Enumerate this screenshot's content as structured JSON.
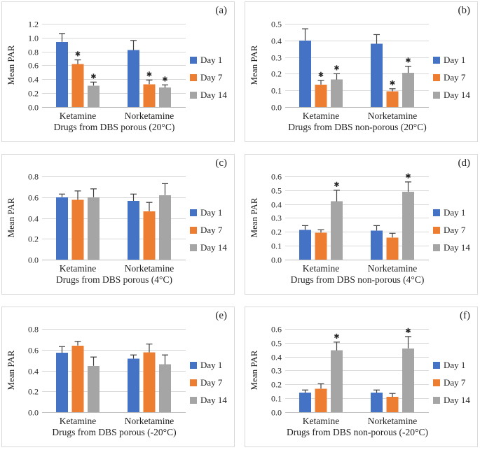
{
  "figure": {
    "legend": [
      "Day 1",
      "Day 7",
      "Day 14"
    ],
    "legend_position": "right",
    "sig_marker": "✱",
    "colors": {
      "day1": "#4472C4",
      "day7": "#ED7D31",
      "day14": "#A5A5A5",
      "error_bar": "#404040",
      "gridline": "#d9d9d9",
      "axis_line": "#bfbfbf",
      "panel_border": "#d9d9d9",
      "text": "#262626",
      "star": "#000000"
    }
  },
  "chart_data": [
    {
      "type": "bar",
      "panel_label": "(a)",
      "xlabel": "Drugs from DBS porous (20°C)",
      "ylabel": "Mean PAR",
      "categories": [
        "Ketamine",
        "Norketamine"
      ],
      "ylim": [
        0,
        1.2
      ],
      "ytick_step": 0.2,
      "grid": true,
      "legend": [
        "Day 1",
        "Day 7",
        "Day 14"
      ],
      "legend_position": "right",
      "series": [
        {
          "name": "Day 1",
          "values": [
            0.94,
            0.82
          ],
          "errors": [
            0.12,
            0.14
          ],
          "significant": [
            false,
            false
          ]
        },
        {
          "name": "Day 7",
          "values": [
            0.62,
            0.33
          ],
          "errors": [
            0.06,
            0.06
          ],
          "significant": [
            true,
            true
          ]
        },
        {
          "name": "Day 14",
          "values": [
            0.31,
            0.28
          ],
          "errors": [
            0.05,
            0.04
          ],
          "significant": [
            true,
            true
          ]
        }
      ]
    },
    {
      "type": "bar",
      "panel_label": "(b)",
      "xlabel": "Drugs from DBS non-porous (20°C)",
      "ylabel": "Mean PAR",
      "categories": [
        "Ketamine",
        "Norketamine"
      ],
      "ylim": [
        0,
        0.5
      ],
      "ytick_step": 0.1,
      "grid": true,
      "legend": [
        "Day 1",
        "Day 7",
        "Day 14"
      ],
      "legend_position": "right",
      "series": [
        {
          "name": "Day 1",
          "values": [
            0.4,
            0.38
          ],
          "errors": [
            0.07,
            0.055
          ],
          "significant": [
            false,
            false
          ]
        },
        {
          "name": "Day 7",
          "values": [
            0.135,
            0.095
          ],
          "errors": [
            0.025,
            0.015
          ],
          "significant": [
            true,
            true
          ]
        },
        {
          "name": "Day 14",
          "values": [
            0.165,
            0.205
          ],
          "errors": [
            0.035,
            0.04
          ],
          "significant": [
            true,
            true
          ]
        }
      ]
    },
    {
      "type": "bar",
      "panel_label": "(c)",
      "xlabel": "Drugs from DBS porous (4°C)",
      "ylabel": "Mean PAR",
      "categories": [
        "Ketamine",
        "Norketamine"
      ],
      "ylim": [
        0,
        0.8
      ],
      "ytick_step": 0.2,
      "grid": true,
      "legend": [
        "Day 1",
        "Day 7",
        "Day 14"
      ],
      "legend_position": "right",
      "series": [
        {
          "name": "Day 1",
          "values": [
            0.6,
            0.565
          ],
          "errors": [
            0.03,
            0.065
          ],
          "significant": [
            false,
            false
          ]
        },
        {
          "name": "Day 7",
          "values": [
            0.575,
            0.465
          ],
          "errors": [
            0.085,
            0.085
          ],
          "significant": [
            false,
            false
          ]
        },
        {
          "name": "Day 14",
          "values": [
            0.6,
            0.62
          ],
          "errors": [
            0.08,
            0.11
          ],
          "significant": [
            false,
            false
          ]
        }
      ]
    },
    {
      "type": "bar",
      "panel_label": "(d)",
      "xlabel": "Drugs from DBS non-porous (4°C)",
      "ylabel": "Mean PAR",
      "categories": [
        "Ketamine",
        "Norketamine"
      ],
      "ylim": [
        0,
        0.6
      ],
      "ytick_step": 0.1,
      "grid": true,
      "legend": [
        "Day 1",
        "Day 7",
        "Day 14"
      ],
      "legend_position": "right",
      "series": [
        {
          "name": "Day 1",
          "values": [
            0.215,
            0.21
          ],
          "errors": [
            0.03,
            0.035
          ],
          "significant": [
            false,
            false
          ]
        },
        {
          "name": "Day 7",
          "values": [
            0.195,
            0.16
          ],
          "errors": [
            0.02,
            0.03
          ],
          "significant": [
            false,
            false
          ]
        },
        {
          "name": "Day 14",
          "values": [
            0.42,
            0.49
          ],
          "errors": [
            0.08,
            0.07
          ],
          "significant": [
            true,
            true
          ]
        }
      ]
    },
    {
      "type": "bar",
      "panel_label": "(e)",
      "xlabel": "Drugs from DBS porous (-20°C)",
      "ylabel": "Mean PAR",
      "categories": [
        "Ketamine",
        "Norketamine"
      ],
      "ylim": [
        0,
        0.8
      ],
      "ytick_step": 0.2,
      "grid": true,
      "legend": [
        "Day 1",
        "Day 7",
        "Day 14"
      ],
      "legend_position": "right",
      "series": [
        {
          "name": "Day 1",
          "values": [
            0.57,
            0.515
          ],
          "errors": [
            0.06,
            0.035
          ],
          "significant": [
            false,
            false
          ]
        },
        {
          "name": "Day 7",
          "values": [
            0.64,
            0.575
          ],
          "errors": [
            0.04,
            0.08
          ],
          "significant": [
            false,
            false
          ]
        },
        {
          "name": "Day 14",
          "values": [
            0.445,
            0.46
          ],
          "errors": [
            0.085,
            0.09
          ],
          "significant": [
            false,
            false
          ]
        }
      ]
    },
    {
      "type": "bar",
      "panel_label": "(f)",
      "xlabel": "Drugs from DBS non-porous (-20°C)",
      "ylabel": "Mean PAR",
      "categories": [
        "Ketamine",
        "Norketamine"
      ],
      "ylim": [
        0,
        0.6
      ],
      "ytick_step": 0.1,
      "grid": true,
      "legend": [
        "Day 1",
        "Day 7",
        "Day 14"
      ],
      "legend_position": "right",
      "series": [
        {
          "name": "Day 1",
          "values": [
            0.14,
            0.14
          ],
          "errors": [
            0.02,
            0.02
          ],
          "significant": [
            false,
            false
          ]
        },
        {
          "name": "Day 7",
          "values": [
            0.17,
            0.11
          ],
          "errors": [
            0.035,
            0.025
          ],
          "significant": [
            false,
            false
          ]
        },
        {
          "name": "Day 14",
          "values": [
            0.445,
            0.46
          ],
          "errors": [
            0.06,
            0.085
          ],
          "significant": [
            true,
            true
          ]
        }
      ]
    }
  ]
}
